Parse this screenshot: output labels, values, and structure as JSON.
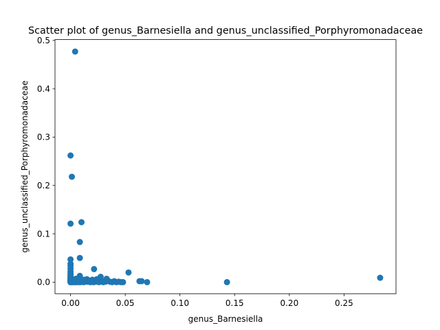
{
  "chart_data": {
    "type": "scatter",
    "title": "Scatter plot of genus_Barnesiella and genus_unclassified_Porphyromonadaceae",
    "xlabel": "genus_Barnesiella",
    "ylabel": "genus_unclassified_Porphyromonadaceae",
    "xlim": [
      -0.0142,
      0.2975
    ],
    "ylim": [
      -0.0239,
      0.5017
    ],
    "xticks": [
      0.0,
      0.05,
      0.1,
      0.15,
      0.2,
      0.25
    ],
    "xtick_labels": [
      "0.00",
      "0.05",
      "0.10",
      "0.15",
      "0.20",
      "0.25"
    ],
    "yticks": [
      0.0,
      0.1,
      0.2,
      0.3,
      0.4,
      0.5
    ],
    "ytick_labels": [
      "0.0",
      "0.1",
      "0.2",
      "0.3",
      "0.4",
      "0.5"
    ],
    "grid": false,
    "marker_color": "#1f77b4",
    "series": [
      {
        "x": [
          0.0042,
          0.0,
          0.0012,
          0.0,
          0.01,
          0.0085,
          0.0085,
          0.0,
          0.0,
          0.0,
          0.0,
          0.0,
          0.0,
          0.0,
          0.0,
          0.0,
          0.0,
          0.0,
          0.0,
          0.0,
          0.0,
          0.0,
          0.0,
          0.0,
          0.0,
          0.0,
          0.0,
          0.0,
          0.0,
          0.0,
          0.001,
          0.002,
          0.003,
          0.004,
          0.005,
          0.006,
          0.007,
          0.008,
          0.009,
          0.011,
          0.0085,
          0.012,
          0.013,
          0.014,
          0.015,
          0.016,
          0.017,
          0.018,
          0.019,
          0.02,
          0.021,
          0.022,
          0.023,
          0.024,
          0.025,
          0.026,
          0.027,
          0.028,
          0.029,
          0.03,
          0.031,
          0.032,
          0.034,
          0.036,
          0.038,
          0.04,
          0.042,
          0.044,
          0.046,
          0.048,
          0.0215,
          0.0275,
          0.033,
          0.025,
          0.053,
          0.063,
          0.065,
          0.07,
          0.143,
          0.283,
          0.001,
          0.002,
          0.003,
          0.004,
          0.005,
          0.006,
          0.007,
          0.01,
          0.012,
          0.015,
          0.018,
          0.02
        ],
        "y": [
          0.477,
          0.262,
          0.218,
          0.121,
          0.124,
          0.083,
          0.05,
          0.047,
          0.038,
          0.034,
          0.028,
          0.022,
          0.018,
          0.015,
          0.012,
          0.01,
          0.008,
          0.006,
          0.005,
          0.004,
          0.003,
          0.002,
          0.001,
          0.0005,
          0.0,
          0.002,
          0.003,
          0.001,
          0.004,
          0.0,
          0.0,
          0.001,
          0.003,
          0.002,
          0.0,
          0.004,
          0.002,
          0.001,
          0.0,
          0.003,
          0.013,
          0.001,
          0.005,
          0.002,
          0.001,
          0.004,
          0.002,
          0.0,
          0.001,
          0.003,
          0.0,
          0.002,
          0.001,
          0.006,
          0.003,
          0.0,
          0.002,
          0.004,
          0.001,
          0.0,
          0.002,
          0.001,
          0.003,
          0.001,
          0.0,
          0.002,
          0.0,
          0.001,
          0.0,
          0.0,
          0.027,
          0.011,
          0.007,
          0.005,
          0.02,
          0.002,
          0.002,
          0.0,
          0.0,
          0.009,
          0.006,
          0.0,
          0.005,
          0.0,
          0.007,
          0.003,
          0.0,
          0.006,
          0.0,
          0.006,
          0.003,
          0.005
        ]
      }
    ]
  }
}
